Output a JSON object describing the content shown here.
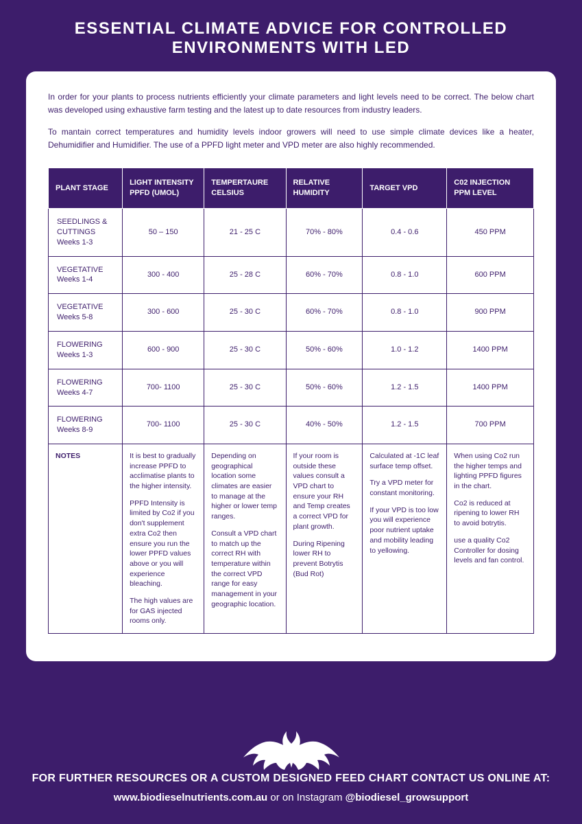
{
  "title": "ESSENTIAL CLIMATE ADVICE FOR CONTROLLED ENVIRONMENTS WITH LED",
  "intro1": "In order for your plants to process nutrients efficiently your climate parameters and light levels need to be correct. The below chart was developed using exhaustive farm testing and the latest up to date resources from industry leaders.",
  "intro2": "To mantain correct temperatures and humidity levels indoor growers will need to use simple climate devices like a heater, Dehumidifier and Humidifier. The use of a PPFD light meter and VPD meter are also highly recommended.",
  "headers": {
    "stage": "PLANT STAGE",
    "light": "LIGHT INTENSITY PPFD (UMOL)",
    "temp": "TEMPERTAURE CELSIUS",
    "rh": "RELATIVE HUMIDITY",
    "vpd": "TARGET VPD",
    "co2": "C02 INJECTION PPM LEVEL"
  },
  "rows": [
    {
      "stage_name": "SEEDLINGS & CUTTINGS",
      "stage_weeks": "Weeks 1-3",
      "light": "50 – 150",
      "temp": "21 - 25 C",
      "rh": "70% - 80%",
      "vpd": "0.4 - 0.6",
      "co2": "450 PPM"
    },
    {
      "stage_name": "VEGETATIVE",
      "stage_weeks": "Weeks 1-4",
      "light": "300 - 400",
      "temp": "25 - 28 C",
      "rh": "60% - 70%",
      "vpd": "0.8 - 1.0",
      "co2": "600 PPM"
    },
    {
      "stage_name": "VEGETATIVE",
      "stage_weeks": "Weeks 5-8",
      "light": "300 - 600",
      "temp": "25 - 30 C",
      "rh": "60% - 70%",
      "vpd": "0.8 - 1.0",
      "co2": "900 PPM"
    },
    {
      "stage_name": "FLOWERING",
      "stage_weeks": "Weeks 1-3",
      "light": "600 - 900",
      "temp": "25 - 30 C",
      "rh": "50% - 60%",
      "vpd": "1.0 - 1.2",
      "co2": "1400 PPM"
    },
    {
      "stage_name": "FLOWERING",
      "stage_weeks": "Weeks 4-7",
      "light": "700- 1100",
      "temp": "25 - 30 C",
      "rh": "50% - 60%",
      "vpd": "1.2 - 1.5",
      "co2": "1400 PPM"
    },
    {
      "stage_name": "FLOWERING",
      "stage_weeks": "Weeks 8-9",
      "light": "700- 1100",
      "temp": "25 - 30 C",
      "rh": "40% - 50%",
      "vpd": "1.2 - 1.5",
      "co2": "700 PPM"
    }
  ],
  "notes_label": "NOTES",
  "notes": {
    "light": [
      "It is best to gradually increase PPFD to acclimatise plants to the higher intensity.",
      "PPFD Intensity is limited by Co2 if you don't supplement extra Co2 then ensure you run the lower PPFD values above or you will experience bleaching.",
      "The high values are for GAS injected rooms only."
    ],
    "temp": [
      "Depending on geographical location some climates are easier to manage at the higher or lower temp ranges.",
      "Consult a VPD chart to match up the correct RH with temperature within the correct VPD range for easy management in your geographic location."
    ],
    "rh": [
      "If your room is outside these values consult a VPD chart to ensure your RH and Temp creates a correct VPD for plant growth.",
      "During Ripening lower RH to prevent Botrytis (Bud Rot)"
    ],
    "vpd": [
      "Calculated at -1C leaf surface temp offset.",
      "Try a VPD meter for constant monitoring.",
      "If your VPD is too low you will experience poor nutrient uptake and mobility leading to yellowing."
    ],
    "co2": [
      "When using Co2 run the higher temps and lighting PPFD figures in the chart.",
      "Co2 is reduced at ripening to lower RH to avoid botrytis.",
      "use a quality Co2 Controller for dosing levels and fan control."
    ]
  },
  "footer": {
    "line1": "FOR FURTHER RESOURCES OR A CUSTOM DESIGNED FEED CHART CONTACT US ONLINE AT:",
    "website": "www.biodieselnutrients.com.au",
    "connector": " or on Instagram ",
    "handle": "@biodiesel_growsupport"
  },
  "styling": {
    "background_color": "#3d1d6b",
    "card_bg": "#ffffff",
    "header_bg": "#3d1d6b",
    "header_text": "#ffffff",
    "body_text": "#3d1d6b",
    "title_text": "#ffffff",
    "footer_text": "#ffffff",
    "card_radius": 14,
    "title_fontsize": 24,
    "intro_fontsize": 12,
    "th_fontsize": 11,
    "td_fontsize": 11,
    "notes_fontsize": 10.5
  }
}
